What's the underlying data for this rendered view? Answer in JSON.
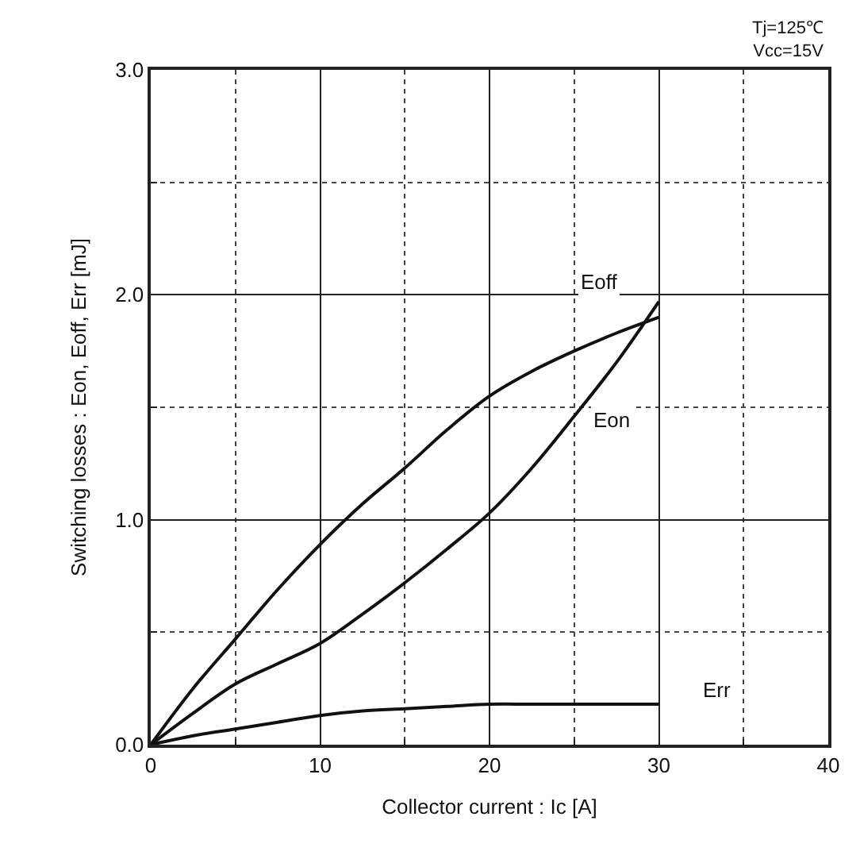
{
  "chart_data": {
    "type": "line",
    "xlabel": "Collector current : Ic [A]",
    "ylabel": "Switching losses : Eon, Eoff, Err [mJ]",
    "annotations": [
      "Tj=125℃\nVcc=15V"
    ],
    "x": [
      0,
      2.5,
      5,
      7.5,
      10,
      12.5,
      15,
      17.5,
      20,
      22.5,
      25,
      27.5,
      30
    ],
    "series": [
      {
        "name": "Eoff",
        "color": "#111111",
        "values": [
          0,
          0.25,
          0.47,
          0.69,
          0.89,
          1.07,
          1.23,
          1.4,
          1.55,
          1.66,
          1.75,
          1.83,
          1.9
        ]
      },
      {
        "name": "Eon",
        "color": "#111111",
        "values": [
          0,
          0.14,
          0.27,
          0.36,
          0.45,
          0.58,
          0.72,
          0.87,
          1.03,
          1.23,
          1.46,
          1.7,
          1.97
        ]
      },
      {
        "name": "Err",
        "color": "#111111",
        "values": [
          0,
          0.04,
          0.07,
          0.1,
          0.13,
          0.15,
          0.16,
          0.17,
          0.18,
          0.18,
          0.18,
          0.18,
          0.18
        ]
      }
    ],
    "xlim": [
      0,
      40
    ],
    "xticks": [
      0,
      {
        "value": 5,
        "label": null
      },
      10,
      {
        "value": 15,
        "label": null
      },
      20,
      {
        "value": 25,
        "label": null
      },
      30,
      {
        "value": 35,
        "label": null
      },
      40
    ],
    "ylim": [
      0,
      3
    ],
    "yticks": [
      {
        "value": 0,
        "label": "0.0"
      },
      {
        "value": 0.5,
        "label": null
      },
      {
        "value": 1,
        "label": "1.0"
      },
      {
        "value": 1.5,
        "label": null
      },
      {
        "value": 2,
        "label": "2.0"
      },
      {
        "value": 2.5,
        "label": null
      },
      {
        "value": 3,
        "label": "3.0"
      }
    ],
    "grid": true,
    "legend": false,
    "marker": "none",
    "line_style": "solid"
  }
}
